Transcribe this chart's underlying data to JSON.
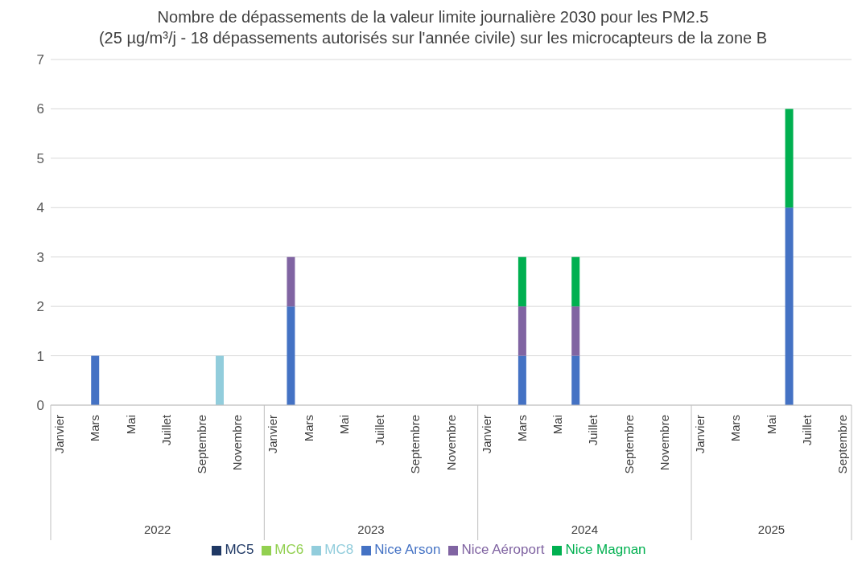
{
  "chart_data": {
    "type": "bar",
    "title": "Nombre de dépassements de la valeur limite journalière 2030 pour les PM2.5\n(25 µg/m³/j - 18 dépassements autorisés sur l'année civile) sur les microcapteurs de la zone B",
    "categories": [
      "Janvier",
      null,
      "Mars",
      null,
      "Mai",
      null,
      "Juillet",
      null,
      "Septembre",
      null,
      "Novembre",
      null,
      "Janvier",
      null,
      "Mars",
      null,
      "Mai",
      null,
      "Juillet",
      null,
      "Septembre",
      null,
      "Novembre",
      null,
      "Janvier",
      null,
      "Mars",
      null,
      "Mai",
      null,
      "Juillet",
      null,
      "Septembre",
      null,
      "Novembre",
      null,
      "Janvier",
      null,
      "Mars",
      null,
      "Mai",
      null,
      "Juillet",
      null,
      "Septembre"
    ],
    "annotations": [
      "2022",
      "2023",
      "2024",
      "2025"
    ],
    "stacked": true,
    "series": [
      {
        "name": "Nice Arson",
        "color": "#4472c4",
        "values": [
          0,
          0,
          1,
          0,
          0,
          0,
          0,
          0,
          0,
          0,
          0,
          0,
          0,
          2,
          0,
          0,
          0,
          0,
          0,
          0,
          0,
          0,
          0,
          0,
          0,
          0,
          1,
          0,
          0,
          1,
          0,
          0,
          0,
          0,
          0,
          0,
          0,
          0,
          0,
          0,
          0,
          4,
          0,
          0,
          0
        ]
      },
      {
        "name": "Nice Aéroport",
        "color": "#8064a2",
        "values": [
          0,
          0,
          0,
          0,
          0,
          0,
          0,
          0,
          0,
          0,
          0,
          0,
          0,
          1,
          0,
          0,
          0,
          0,
          0,
          0,
          0,
          0,
          0,
          0,
          0,
          0,
          1,
          0,
          0,
          1,
          0,
          0,
          0,
          0,
          0,
          0,
          0,
          0,
          0,
          0,
          0,
          0,
          0,
          0,
          0
        ]
      },
      {
        "name": "Nice Magnan",
        "color": "#00b050",
        "values": [
          0,
          0,
          0,
          0,
          0,
          0,
          0,
          0,
          0,
          0,
          0,
          0,
          0,
          0,
          0,
          0,
          0,
          0,
          0,
          0,
          0,
          0,
          0,
          0,
          0,
          0,
          1,
          0,
          0,
          1,
          0,
          0,
          0,
          0,
          0,
          0,
          0,
          0,
          0,
          0,
          0,
          2,
          0,
          0,
          0
        ]
      },
      {
        "name": "MC5",
        "color": "#1f3864",
        "values": [
          0,
          0,
          0,
          0,
          0,
          0,
          0,
          0,
          0,
          0,
          0,
          0,
          0,
          0,
          0,
          0,
          0,
          0,
          0,
          0,
          0,
          0,
          0,
          0,
          0,
          0,
          0,
          0,
          0,
          0,
          0,
          0,
          0,
          0,
          0,
          0,
          0,
          0,
          0,
          0,
          0,
          0,
          0,
          0,
          0
        ]
      },
      {
        "name": "MC6",
        "color": "#92d050",
        "values": [
          0,
          0,
          0,
          0,
          0,
          0,
          0,
          0,
          0,
          0,
          0,
          0,
          0,
          0,
          0,
          0,
          0,
          0,
          0,
          0,
          0,
          0,
          0,
          0,
          0,
          0,
          0,
          0,
          0,
          0,
          0,
          0,
          0,
          0,
          0,
          0,
          0,
          0,
          0,
          0,
          0,
          0,
          0,
          0,
          0
        ]
      },
      {
        "name": "MC8",
        "color": "#92cddc",
        "values": [
          0,
          0,
          0,
          0,
          0,
          0,
          0,
          0,
          0,
          1,
          0,
          0,
          0,
          0,
          0,
          0,
          0,
          0,
          0,
          0,
          0,
          0,
          0,
          0,
          0,
          0,
          0,
          0,
          0,
          0,
          0,
          0,
          0,
          0,
          0,
          0,
          0,
          0,
          0,
          0,
          0,
          0,
          0,
          0,
          0
        ]
      }
    ],
    "ylim": [
      0,
      7
    ],
    "yticks": [
      0,
      1,
      2,
      3,
      4,
      5,
      6,
      7
    ],
    "grid": "y",
    "legend": "bottom"
  }
}
